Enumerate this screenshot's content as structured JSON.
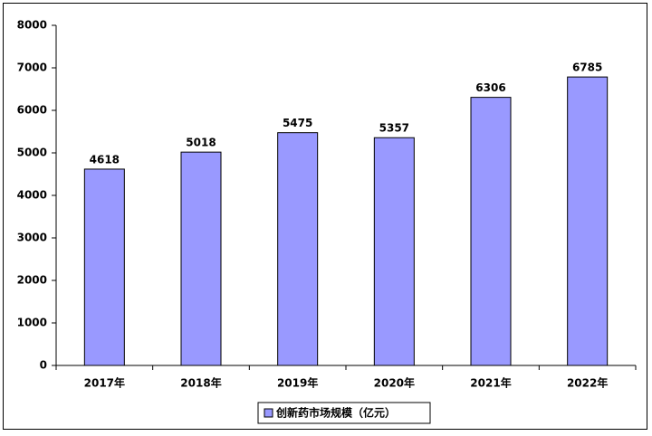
{
  "chart_data": {
    "type": "bar",
    "categories": [
      "2017年",
      "2018年",
      "2019年",
      "2020年",
      "2021年",
      "2022年"
    ],
    "series": [
      {
        "name": "创新药市场规模（亿元）",
        "color": "#9999ff",
        "values": [
          4618,
          5018,
          5475,
          5357,
          6306,
          6785
        ]
      }
    ],
    "ylim": [
      0,
      8000
    ],
    "yticks": [
      0,
      1000,
      2000,
      3000,
      4000,
      5000,
      6000,
      7000,
      8000
    ],
    "grid": false,
    "legend": "bottom",
    "data_labels": true
  }
}
